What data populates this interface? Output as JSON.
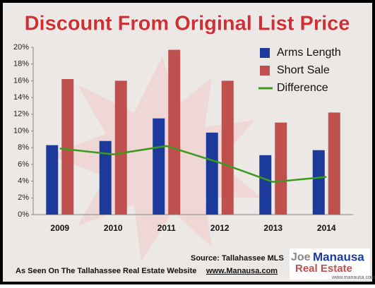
{
  "chart_data": {
    "type": "bar",
    "title": "Discount From Original List Price",
    "categories": [
      "2009",
      "2010",
      "2011",
      "2012",
      "2013",
      "2014"
    ],
    "series": [
      {
        "name": "Arms Length",
        "type": "bar",
        "color": "#1c3a9c",
        "values": [
          8.3,
          8.8,
          11.5,
          9.8,
          7.1,
          7.7
        ]
      },
      {
        "name": "Short Sale",
        "type": "bar",
        "color": "#c0504d",
        "values": [
          16.2,
          16.0,
          19.7,
          16.0,
          11.0,
          12.2
        ]
      },
      {
        "name": "Difference",
        "type": "line",
        "color": "#3a9a1e",
        "values": [
          7.9,
          7.2,
          8.2,
          6.2,
          3.9,
          4.5
        ]
      }
    ],
    "ylim": [
      0,
      20
    ],
    "yticks": [
      {
        "value": 0,
        "label": "0%"
      },
      {
        "value": 2,
        "label": "2%"
      },
      {
        "value": 4,
        "label": "4%"
      },
      {
        "value": 6,
        "label": "6%"
      },
      {
        "value": 8,
        "label": "8%"
      },
      {
        "value": 10,
        "label": "10%"
      },
      {
        "value": 12,
        "label": "12%"
      },
      {
        "value": 14,
        "label": "14%"
      },
      {
        "value": 16,
        "label": "16%"
      },
      {
        "value": 18,
        "label": "18%"
      },
      {
        "value": 20,
        "label": "20%"
      }
    ],
    "legend": "upper right"
  },
  "footer": {
    "source": "Source: Tallahassee MLS",
    "caption": "As Seen On The Tallahassee Real Estate Website",
    "website": "www.Manausa.com"
  },
  "logo": {
    "first": "Joe",
    "last": "Manausa",
    "tagline": "Real Estate",
    "url": "www.manausa.com"
  }
}
